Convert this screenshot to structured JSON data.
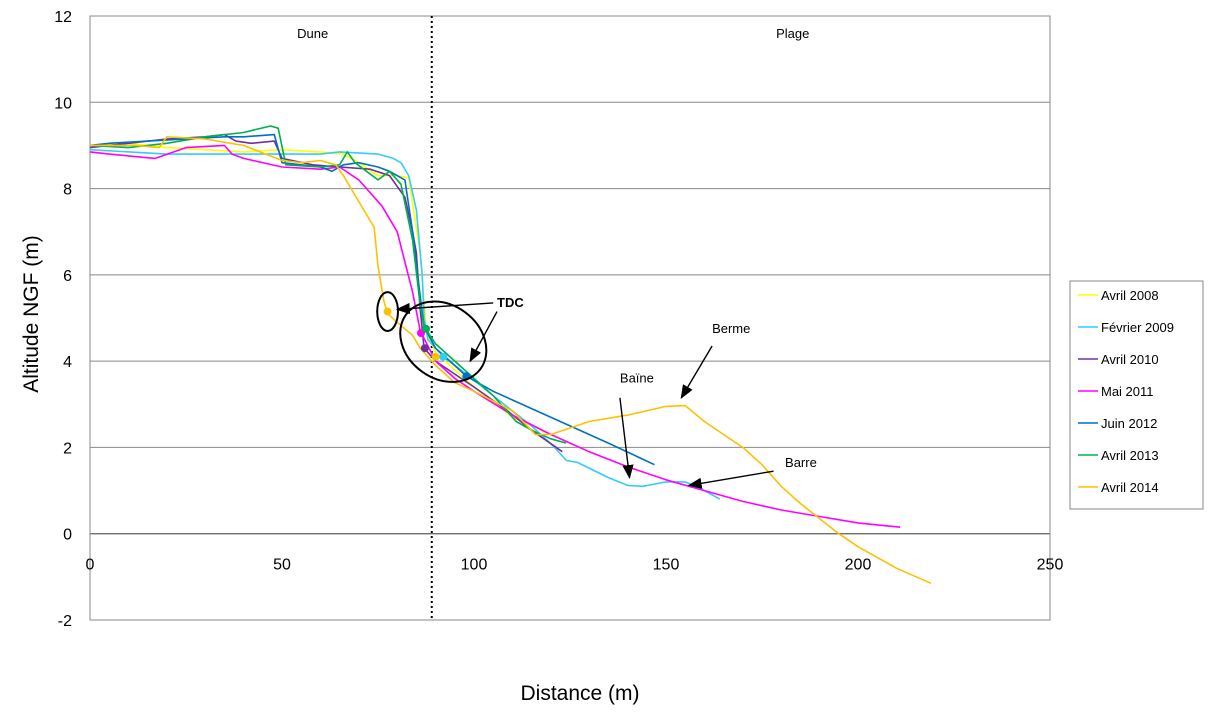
{
  "chart_data": {
    "type": "line",
    "title": "",
    "xlabel": "Distance (m)",
    "ylabel": "Altitude NGF (m)",
    "xlim": [
      0,
      250
    ],
    "ylim": [
      -2,
      12
    ],
    "xticks": [
      0,
      50,
      100,
      150,
      200,
      250
    ],
    "yticks": [
      -2,
      0,
      2,
      4,
      6,
      8,
      10,
      12
    ],
    "grid": "horizontal",
    "legend_position": "right",
    "zones": [
      {
        "label": "Dune",
        "x_center": 58
      },
      {
        "label": "Plage",
        "x_center": 183
      }
    ],
    "divider_x": 89,
    "series": [
      {
        "name": "Avril 2008",
        "color": "#ffff00",
        "points": [
          [
            0,
            9.0
          ],
          [
            10,
            9.05
          ],
          [
            20,
            8.95
          ],
          [
            30,
            8.9
          ],
          [
            40,
            8.85
          ],
          [
            50,
            8.9
          ],
          [
            60,
            8.85
          ],
          [
            66,
            8.8
          ],
          [
            70,
            8.6
          ],
          [
            75,
            8.3
          ],
          [
            80,
            8.3
          ],
          [
            83,
            8.25
          ],
          [
            86,
            6.5
          ],
          [
            87.5,
            4.8
          ],
          [
            88,
            4.6
          ],
          [
            90,
            4.2
          ],
          [
            95,
            3.8
          ],
          [
            100,
            3.4
          ],
          [
            110,
            2.7
          ],
          [
            120,
            2.3
          ],
          [
            125,
            2.1
          ]
        ]
      },
      {
        "name": "Février 2009",
        "color": "#33ccff",
        "points": [
          [
            0,
            8.9
          ],
          [
            20,
            8.8
          ],
          [
            40,
            8.8
          ],
          [
            60,
            8.8
          ],
          [
            65,
            8.85
          ],
          [
            75,
            8.8
          ],
          [
            79,
            8.7
          ],
          [
            81,
            8.6
          ],
          [
            83,
            8.3
          ],
          [
            85,
            7.5
          ],
          [
            86.5,
            6.0
          ],
          [
            87,
            5.0
          ],
          [
            88,
            4.5
          ],
          [
            92,
            4.1
          ],
          [
            98,
            3.7
          ],
          [
            105,
            3.2
          ],
          [
            115,
            2.5
          ],
          [
            121,
            2.0
          ],
          [
            124,
            1.7
          ],
          [
            127,
            1.65
          ],
          [
            135,
            1.3
          ],
          [
            140,
            1.12
          ],
          [
            144,
            1.1
          ],
          [
            150,
            1.2
          ],
          [
            155,
            1.2
          ],
          [
            160,
            1.0
          ],
          [
            164,
            0.8
          ]
        ]
      },
      {
        "name": "Avril 2010",
        "color": "#7030a0",
        "points": [
          [
            0,
            8.95
          ],
          [
            10,
            9.05
          ],
          [
            20,
            9.15
          ],
          [
            30,
            9.2
          ],
          [
            35,
            9.25
          ],
          [
            38,
            9.1
          ],
          [
            42,
            9.05
          ],
          [
            48,
            9.1
          ],
          [
            50,
            8.7
          ],
          [
            58,
            8.55
          ],
          [
            65,
            8.5
          ],
          [
            73,
            8.45
          ],
          [
            78,
            8.3
          ],
          [
            82,
            7.8
          ],
          [
            84,
            7.0
          ],
          [
            85,
            6.5
          ],
          [
            86,
            5.2
          ],
          [
            87,
            4.3
          ],
          [
            90,
            4.0
          ],
          [
            95,
            3.7
          ],
          [
            100,
            3.4
          ],
          [
            108,
            2.9
          ],
          [
            115,
            2.4
          ],
          [
            123,
            1.9
          ]
        ]
      },
      {
        "name": "Mai 2011",
        "color": "#ff00ff",
        "points": [
          [
            0,
            8.85
          ],
          [
            5,
            8.8
          ],
          [
            17,
            8.7
          ],
          [
            25,
            8.95
          ],
          [
            35,
            9.0
          ],
          [
            37,
            8.8
          ],
          [
            40,
            8.7
          ],
          [
            50,
            8.5
          ],
          [
            60,
            8.45
          ],
          [
            65,
            8.5
          ],
          [
            70,
            8.2
          ],
          [
            76,
            7.6
          ],
          [
            80,
            7.0
          ],
          [
            84,
            5.6
          ],
          [
            86,
            4.7
          ],
          [
            90,
            4.0
          ],
          [
            95,
            3.6
          ],
          [
            100,
            3.3
          ],
          [
            110,
            2.75
          ],
          [
            120,
            2.3
          ],
          [
            130,
            1.9
          ],
          [
            140,
            1.55
          ],
          [
            150,
            1.25
          ],
          [
            160,
            1.0
          ],
          [
            170,
            0.75
          ],
          [
            180,
            0.55
          ],
          [
            190,
            0.4
          ],
          [
            200,
            0.25
          ],
          [
            211,
            0.15
          ]
        ]
      },
      {
        "name": "Juin 2012",
        "color": "#0070c0",
        "points": [
          [
            0,
            9.0
          ],
          [
            5,
            9.05
          ],
          [
            15,
            9.1
          ],
          [
            25,
            9.15
          ],
          [
            35,
            9.2
          ],
          [
            40,
            9.2
          ],
          [
            48,
            9.25
          ],
          [
            50,
            8.6
          ],
          [
            60,
            8.5
          ],
          [
            63,
            8.4
          ],
          [
            66,
            8.55
          ],
          [
            70,
            8.6
          ],
          [
            75,
            8.5
          ],
          [
            78,
            8.4
          ],
          [
            82,
            8.2
          ],
          [
            84,
            7.0
          ],
          [
            86,
            5.5
          ],
          [
            87,
            4.8
          ],
          [
            90,
            4.3
          ],
          [
            95,
            3.9
          ],
          [
            98,
            3.65
          ],
          [
            105,
            3.3
          ],
          [
            115,
            2.9
          ],
          [
            125,
            2.5
          ],
          [
            135,
            2.1
          ],
          [
            147,
            1.6
          ]
        ]
      },
      {
        "name": "Avril 2013",
        "color": "#00b050",
        "points": [
          [
            0,
            9.0
          ],
          [
            10,
            8.95
          ],
          [
            20,
            9.05
          ],
          [
            30,
            9.2
          ],
          [
            40,
            9.3
          ],
          [
            47,
            9.45
          ],
          [
            49,
            9.4
          ],
          [
            51,
            8.55
          ],
          [
            60,
            8.5
          ],
          [
            65,
            8.55
          ],
          [
            67,
            8.85
          ],
          [
            69,
            8.6
          ],
          [
            72,
            8.4
          ],
          [
            75,
            8.2
          ],
          [
            78,
            8.4
          ],
          [
            81,
            8.1
          ],
          [
            84,
            6.8
          ],
          [
            86,
            5.3
          ],
          [
            87,
            4.8
          ],
          [
            90,
            4.4
          ],
          [
            95,
            4.0
          ],
          [
            100,
            3.6
          ],
          [
            105,
            3.2
          ],
          [
            111,
            2.6
          ],
          [
            115,
            2.4
          ],
          [
            120,
            2.2
          ],
          [
            124,
            2.1
          ]
        ]
      },
      {
        "name": "Avril 2014",
        "color": "#ffc000",
        "points": [
          [
            0,
            9.0
          ],
          [
            12,
            9.0
          ],
          [
            18,
            8.95
          ],
          [
            20,
            9.2
          ],
          [
            30,
            9.15
          ],
          [
            40,
            9.0
          ],
          [
            50,
            8.65
          ],
          [
            55,
            8.6
          ],
          [
            60,
            8.65
          ],
          [
            64,
            8.55
          ],
          [
            66,
            8.3
          ],
          [
            70,
            7.7
          ],
          [
            74,
            7.1
          ],
          [
            75,
            6.2
          ],
          [
            76.5,
            5.4
          ],
          [
            77.5,
            5.1
          ],
          [
            80,
            4.9
          ],
          [
            84,
            4.6
          ],
          [
            86,
            4.3
          ],
          [
            90,
            3.9
          ],
          [
            95,
            3.5
          ],
          [
            100,
            3.3
          ],
          [
            110,
            2.85
          ],
          [
            116,
            2.3
          ],
          [
            120,
            2.3
          ],
          [
            125,
            2.45
          ],
          [
            130,
            2.6
          ],
          [
            140,
            2.75
          ],
          [
            150,
            2.95
          ],
          [
            155,
            2.97
          ],
          [
            160,
            2.6
          ],
          [
            165,
            2.3
          ],
          [
            170,
            2.0
          ],
          [
            175,
            1.6
          ],
          [
            180,
            1.1
          ],
          [
            185,
            0.7
          ],
          [
            190,
            0.35
          ],
          [
            195,
            0.0
          ],
          [
            200,
            -0.3
          ],
          [
            205,
            -0.55
          ],
          [
            210,
            -0.8
          ],
          [
            219,
            -1.15
          ]
        ]
      }
    ],
    "markers": [
      {
        "series": "Avril 2014",
        "x": 77.5,
        "y": 5.15
      },
      {
        "series": "Avril 2010",
        "x": 87.2,
        "y": 4.3
      },
      {
        "series": "Mai 2011",
        "x": 86.2,
        "y": 4.65
      },
      {
        "series": "Avril 2013",
        "x": 87.5,
        "y": 4.75
      },
      {
        "series": "Avril 2014",
        "x": 90,
        "y": 4.1
      },
      {
        "series": "Février 2009",
        "x": 92,
        "y": 4.1
      },
      {
        "series": "Juin 2012",
        "x": 98,
        "y": 3.65
      }
    ],
    "annotations": [
      {
        "text": "TDC",
        "bold": true,
        "x": 106,
        "y": 5.25,
        "arrows": [
          {
            "from": [
              105,
              5.35
            ],
            "to": [
              80,
              5.2
            ]
          },
          {
            "from": [
              106,
              5.15
            ],
            "to": [
              99,
              4.0
            ]
          }
        ]
      },
      {
        "text": "Berme",
        "bold": false,
        "x": 162,
        "y": 4.65,
        "arrows": [
          {
            "from": [
              162,
              4.35
            ],
            "to": [
              154,
              3.15
            ]
          }
        ]
      },
      {
        "text": "Baïne",
        "bold": false,
        "x": 138,
        "y": 3.5,
        "arrows": [
          {
            "from": [
              138,
              3.15
            ],
            "to": [
              140.5,
              1.3
            ]
          }
        ]
      },
      {
        "text": "Barre",
        "bold": false,
        "x": 181,
        "y": 1.55,
        "arrows": [
          {
            "from": [
              178,
              1.45
            ],
            "to": [
              156,
              1.12
            ]
          }
        ]
      }
    ],
    "circles": [
      {
        "x": 77.5,
        "y": 5.15,
        "rx_data": 2.7,
        "ry_data": 0.45
      },
      {
        "cx": 92,
        "cy": 4.45,
        "rx_data": 12,
        "ry_data": 0.85,
        "rotate_deg": 36
      }
    ]
  }
}
